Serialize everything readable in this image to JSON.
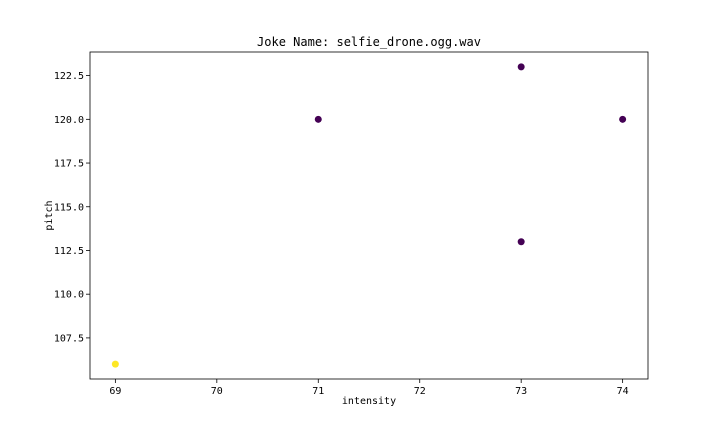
{
  "chart_data": {
    "type": "scatter",
    "title": "Joke Name: selfie_drone.ogg.wav",
    "xlabel": "intensity",
    "ylabel": "pitch",
    "xlim": [
      68.75,
      74.25
    ],
    "ylim": [
      105.15,
      123.85
    ],
    "xticks": [
      69,
      70,
      71,
      72,
      73,
      74
    ],
    "yticks": [
      107.5,
      110.0,
      112.5,
      115.0,
      117.5,
      120.0,
      122.5
    ],
    "grid": false,
    "points": [
      {
        "x": 69,
        "y": 106,
        "color": "#fde725"
      },
      {
        "x": 71,
        "y": 120,
        "color": "#440154"
      },
      {
        "x": 73,
        "y": 123,
        "color": "#440154"
      },
      {
        "x": 73,
        "y": 113,
        "color": "#440154"
      },
      {
        "x": 74,
        "y": 120,
        "color": "#440154"
      }
    ]
  }
}
